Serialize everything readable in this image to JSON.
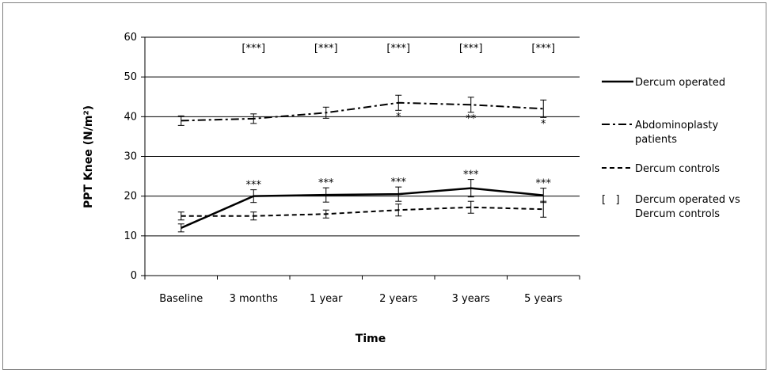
{
  "chart_data": {
    "type": "line",
    "title": "",
    "xlabel": "Time",
    "ylabel": "PPT Knee (N/m²)",
    "ylim": [
      0,
      60
    ],
    "yticks": [
      0,
      10,
      20,
      30,
      40,
      50,
      60
    ],
    "grid": true,
    "legend_position": "right",
    "categories": [
      "Baseline",
      "3 months",
      "1 year",
      "2 years",
      "3 years",
      "5 years"
    ],
    "series": [
      {
        "name": "Dercum operated",
        "style": "solid",
        "values": [
          12,
          20,
          20.3,
          20.5,
          22,
          20.2
        ],
        "errors": [
          1,
          1.6,
          1.8,
          1.8,
          2.2,
          1.8
        ],
        "annotations": [
          "",
          "***",
          "***",
          "***",
          "***",
          "***"
        ]
      },
      {
        "name": "Abdominoplasty patients",
        "style": "dashdot",
        "values": [
          39,
          39.5,
          41,
          43.5,
          43,
          42
        ],
        "errors": [
          1.2,
          1.2,
          1.4,
          1.9,
          1.9,
          2.2
        ],
        "annotations": [
          "",
          "",
          "",
          "*",
          "**",
          "*"
        ]
      },
      {
        "name": "Dercum controls",
        "style": "dashed",
        "values": [
          15,
          15,
          15.5,
          16.5,
          17.2,
          16.7
        ],
        "errors": [
          1,
          1,
          1,
          1.5,
          1.5,
          2
        ],
        "annotations": [
          "",
          "",
          "",
          "",
          "",
          ""
        ]
      }
    ],
    "bracket_annotations": [
      "",
      "[***]",
      "[***]",
      "[***]",
      "[***]",
      "[***]"
    ],
    "legend_extra": {
      "symbol": "[   ]",
      "text_line1": "Dercum operated vs",
      "text_line2": "Dercum controls"
    }
  },
  "legend": {
    "series_labels": [
      "Dercum operated",
      "Abdominoplasty",
      "Dercum controls"
    ],
    "series_label_line2": [
      "",
      "patients",
      ""
    ]
  }
}
